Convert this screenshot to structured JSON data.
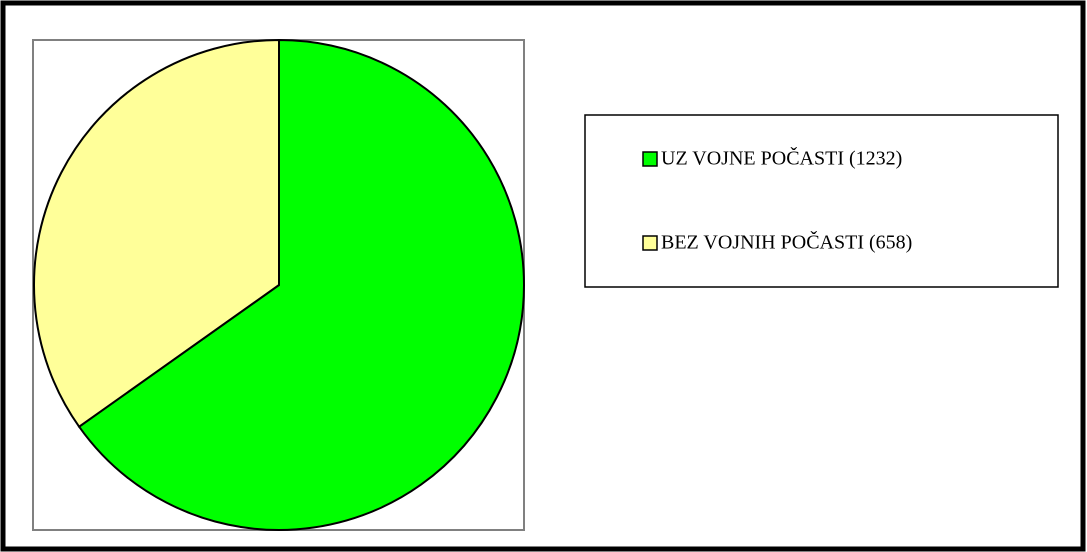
{
  "chart_data": {
    "type": "pie",
    "categories": [
      "UZ VOJNE POČASTI (1232)",
      "BEZ VOJNIH POČASTI (658)"
    ],
    "values": [
      1232,
      658
    ],
    "colors": [
      "#00ff00",
      "#ffff99"
    ]
  }
}
